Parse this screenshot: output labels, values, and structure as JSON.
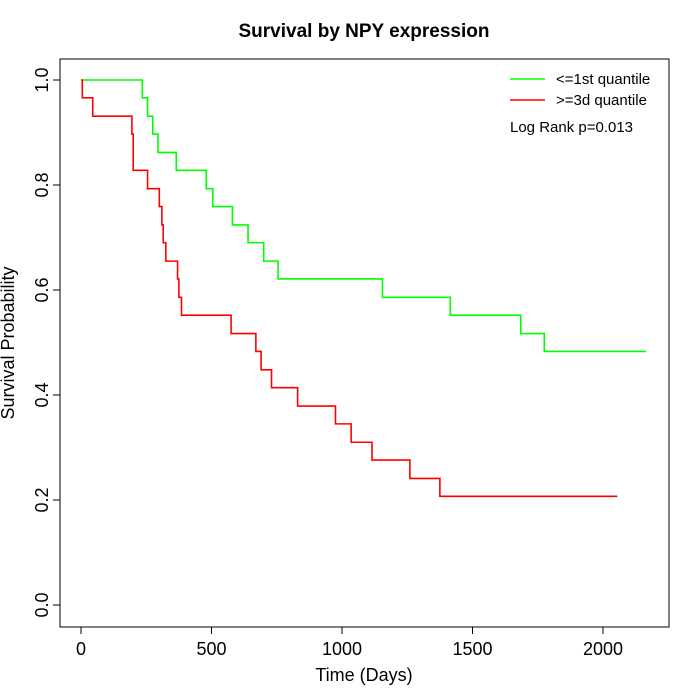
{
  "chart_data": {
    "type": "line",
    "subtype": "kaplan-meier-step",
    "title": "Survival by NPY expression",
    "xlabel": "Time (Days)",
    "ylabel": "Survival Probability",
    "xlim": [
      0,
      2200
    ],
    "ylim": [
      0,
      1
    ],
    "xticks": [
      0,
      500,
      1000,
      1500,
      2000
    ],
    "yticks": [
      0.0,
      0.2,
      0.4,
      0.6,
      0.8,
      1.0
    ],
    "xtick_labels": [
      "0",
      "500",
      "1000",
      "1500",
      "2000"
    ],
    "ytick_labels": [
      "0.0",
      "0.2",
      "0.4",
      "0.6",
      "0.8",
      "1.0"
    ],
    "grid": false,
    "legend_position": "top-right",
    "annotation": "Log Rank p=0.013",
    "series": [
      {
        "name": "<=1st quantile",
        "color": "#00ff00",
        "steps": [
          [
            0,
            1.0
          ],
          [
            235,
            0.966
          ],
          [
            255,
            0.931
          ],
          [
            275,
            0.897
          ],
          [
            295,
            0.862
          ],
          [
            365,
            0.828
          ],
          [
            480,
            0.793
          ],
          [
            505,
            0.759
          ],
          [
            580,
            0.724
          ],
          [
            640,
            0.69
          ],
          [
            700,
            0.655
          ],
          [
            755,
            0.621
          ],
          [
            1155,
            0.586
          ],
          [
            1415,
            0.552
          ],
          [
            1685,
            0.517
          ],
          [
            1775,
            0.483
          ],
          [
            2165,
            0.483
          ]
        ]
      },
      {
        "name": ">=3d quantile",
        "color": "#ff0000",
        "steps": [
          [
            0,
            1.0
          ],
          [
            5,
            0.966
          ],
          [
            45,
            0.931
          ],
          [
            195,
            0.897
          ],
          [
            200,
            0.828
          ],
          [
            255,
            0.793
          ],
          [
            300,
            0.759
          ],
          [
            310,
            0.724
          ],
          [
            315,
            0.69
          ],
          [
            325,
            0.655
          ],
          [
            370,
            0.621
          ],
          [
            375,
            0.586
          ],
          [
            385,
            0.552
          ],
          [
            575,
            0.517
          ],
          [
            670,
            0.483
          ],
          [
            690,
            0.448
          ],
          [
            730,
            0.414
          ],
          [
            830,
            0.379
          ],
          [
            975,
            0.345
          ],
          [
            1035,
            0.31
          ],
          [
            1115,
            0.276
          ],
          [
            1260,
            0.241
          ],
          [
            1375,
            0.207
          ],
          [
            2055,
            0.207
          ]
        ]
      }
    ]
  }
}
